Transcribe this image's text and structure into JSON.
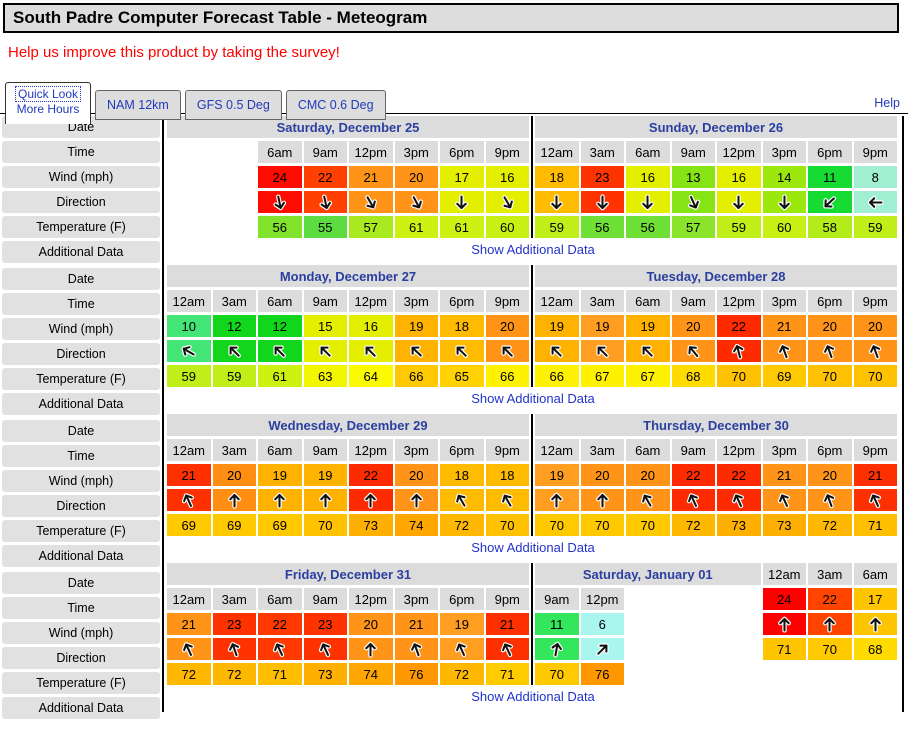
{
  "window_title": "South Padre Computer Forecast Table - Meteogram",
  "survey_text": "Help us improve this product by taking the survey!",
  "help_label": "Help",
  "tabs": {
    "active": {
      "line1": "Quick Look",
      "line2": "More Hours"
    },
    "others": [
      "NAM 12km",
      "GFS 0.5 Deg",
      "CMC 0.6 Deg"
    ]
  },
  "sidebar": {
    "row_labels": [
      "Date",
      "Time",
      "Wind (mph)",
      "Direction",
      "Temperature (F)",
      "Additional Data"
    ]
  },
  "show_additional_label": "Show Additional Data",
  "colors": {
    "header_bg": "#dcdcdc",
    "label_bg": "#e1e1e1",
    "date_text": "#2b3fa0",
    "link_blue": "#2233cc",
    "survey_red": "#ff0000"
  },
  "sections": [
    {
      "days": [
        {
          "title": "Saturday, December 25",
          "lead_blanks": 2,
          "header_cols": 8,
          "cols": [
            {
              "time": "6am",
              "wind": "24",
              "wind_color": "#ff0b00",
              "dir_deg": 168,
              "temp": "56",
              "temp_color": "#82e32c"
            },
            {
              "time": "9am",
              "wind": "22",
              "wind_color": "#ff4000",
              "dir_deg": 168,
              "temp": "55",
              "temp_color": "#5cdc3f"
            },
            {
              "time": "12pm",
              "wind": "21",
              "wind_color": "#ff9418",
              "dir_deg": 150,
              "temp": "57",
              "temp_color": "#a8ea1f"
            },
            {
              "time": "3pm",
              "wind": "20",
              "wind_color": "#ff9418",
              "dir_deg": 152,
              "temp": "61",
              "temp_color": "#cdf112"
            },
            {
              "time": "6pm",
              "wind": "17",
              "wind_color": "#e4ef00",
              "dir_deg": 180,
              "temp": "61",
              "temp_color": "#cdf112"
            },
            {
              "time": "9pm",
              "wind": "16",
              "wind_color": "#e4ef00",
              "dir_deg": 150,
              "temp": "60",
              "temp_color": "#c9f015"
            }
          ]
        },
        {
          "title": "Sunday, December 26",
          "lead_blanks": 0,
          "header_cols": 8,
          "cols": [
            {
              "time": "12am",
              "wind": "18",
              "wind_color": "#ffbb00",
              "dir_deg": 180,
              "temp": "59",
              "temp_color": "#bfee19"
            },
            {
              "time": "3am",
              "wind": "23",
              "wind_color": "#ff3300",
              "dir_deg": 180,
              "temp": "56",
              "temp_color": "#6fe036"
            },
            {
              "time": "6am",
              "wind": "16",
              "wind_color": "#e4ef00",
              "dir_deg": 180,
              "temp": "56",
              "temp_color": "#6fe036"
            },
            {
              "time": "9am",
              "wind": "13",
              "wind_color": "#86e414",
              "dir_deg": 155,
              "temp": "57",
              "temp_color": "#89e42b"
            },
            {
              "time": "12pm",
              "wind": "16",
              "wind_color": "#e4ef00",
              "dir_deg": 180,
              "temp": "59",
              "temp_color": "#bfee19"
            },
            {
              "time": "3pm",
              "wind": "14",
              "wind_color": "#9ce80d",
              "dir_deg": 180,
              "temp": "60",
              "temp_color": "#c9f015"
            },
            {
              "time": "6pm",
              "wind": "11",
              "wind_color": "#16db33",
              "dir_deg": 227,
              "temp": "58",
              "temp_color": "#b4ec1b"
            },
            {
              "time": "9pm",
              "wind": "8",
              "wind_color": "#a0efd2",
              "dir_deg": 270,
              "temp": "59",
              "temp_color": "#bfee19"
            }
          ]
        }
      ]
    },
    {
      "days": [
        {
          "title": "Monday, December 27",
          "lead_blanks": 0,
          "header_cols": 8,
          "cols": [
            {
              "time": "12am",
              "wind": "10",
              "wind_color": "#44e577",
              "dir_deg": 300,
              "temp": "59",
              "temp_color": "#bfee19"
            },
            {
              "time": "3am",
              "wind": "12",
              "wind_color": "#12d61b",
              "dir_deg": 315,
              "temp": "59",
              "temp_color": "#bfee19"
            },
            {
              "time": "6am",
              "wind": "12",
              "wind_color": "#12d61b",
              "dir_deg": 315,
              "temp": "61",
              "temp_color": "#cdf112"
            },
            {
              "time": "9am",
              "wind": "15",
              "wind_color": "#e4ef00",
              "dir_deg": 315,
              "temp": "63",
              "temp_color": "#f2f700"
            },
            {
              "time": "12pm",
              "wind": "16",
              "wind_color": "#e4ef00",
              "dir_deg": 315,
              "temp": "64",
              "temp_color": "#fbfa00"
            },
            {
              "time": "3pm",
              "wind": "19",
              "wind_color": "#ffb300",
              "dir_deg": 313,
              "temp": "66",
              "temp_color": "#ffc800"
            },
            {
              "time": "6pm",
              "wind": "18",
              "wind_color": "#ffbb00",
              "dir_deg": 315,
              "temp": "65",
              "temp_color": "#ffd200"
            },
            {
              "time": "9pm",
              "wind": "20",
              "wind_color": "#ff9418",
              "dir_deg": 315,
              "temp": "66",
              "temp_color": "#fff200"
            }
          ]
        },
        {
          "title": "Tuesday, December 28",
          "lead_blanks": 0,
          "header_cols": 8,
          "cols": [
            {
              "time": "12am",
              "wind": "19",
              "wind_color": "#ffb300",
              "dir_deg": 315,
              "temp": "66",
              "temp_color": "#fff200"
            },
            {
              "time": "3am",
              "wind": "19",
              "wind_color": "#ff9e20",
              "dir_deg": 315,
              "temp": "67",
              "temp_color": "#fff200"
            },
            {
              "time": "6am",
              "wind": "19",
              "wind_color": "#ffb300",
              "dir_deg": 315,
              "temp": "67",
              "temp_color": "#fff200"
            },
            {
              "time": "9am",
              "wind": "20",
              "wind_color": "#ff9418",
              "dir_deg": 320,
              "temp": "68",
              "temp_color": "#ffdb00"
            },
            {
              "time": "12pm",
              "wind": "22",
              "wind_color": "#ff2b00",
              "dir_deg": 345,
              "temp": "70",
              "temp_color": "#ffc200"
            },
            {
              "time": "3pm",
              "wind": "21",
              "wind_color": "#ff9418",
              "dir_deg": 340,
              "temp": "69",
              "temp_color": "#ffc900"
            },
            {
              "time": "6pm",
              "wind": "20",
              "wind_color": "#ff9418",
              "dir_deg": 340,
              "temp": "70",
              "temp_color": "#ffc200"
            },
            {
              "time": "9pm",
              "wind": "20",
              "wind_color": "#ff9418",
              "dir_deg": 340,
              "temp": "70",
              "temp_color": "#ffc200"
            }
          ]
        }
      ]
    },
    {
      "days": [
        {
          "title": "Wednesday, December 29",
          "lead_blanks": 0,
          "header_cols": 8,
          "cols": [
            {
              "time": "12am",
              "wind": "21",
              "wind_color": "#ff3000",
              "dir_deg": 335,
              "temp": "69",
              "temp_color": "#ffc900"
            },
            {
              "time": "3am",
              "wind": "20",
              "wind_color": "#ff8e12",
              "dir_deg": 0,
              "temp": "69",
              "temp_color": "#ffc900"
            },
            {
              "time": "6am",
              "wind": "19",
              "wind_color": "#ffb300",
              "dir_deg": 0,
              "temp": "69",
              "temp_color": "#ffc900"
            },
            {
              "time": "9am",
              "wind": "19",
              "wind_color": "#ffb300",
              "dir_deg": 0,
              "temp": "70",
              "temp_color": "#ffc200"
            },
            {
              "time": "12pm",
              "wind": "22",
              "wind_color": "#ff2b00",
              "dir_deg": 0,
              "temp": "73",
              "temp_color": "#ffaf00"
            },
            {
              "time": "3pm",
              "wind": "20",
              "wind_color": "#ff9418",
              "dir_deg": 0,
              "temp": "74",
              "temp_color": "#ffa700"
            },
            {
              "time": "6pm",
              "wind": "18",
              "wind_color": "#ffbb00",
              "dir_deg": 330,
              "temp": "72",
              "temp_color": "#ffb800"
            },
            {
              "time": "9pm",
              "wind": "18",
              "wind_color": "#ffbb00",
              "dir_deg": 330,
              "temp": "70",
              "temp_color": "#ffc200"
            }
          ]
        },
        {
          "title": "Thursday, December 30",
          "lead_blanks": 0,
          "header_cols": 8,
          "cols": [
            {
              "time": "12am",
              "wind": "19",
              "wind_color": "#ff9e20",
              "dir_deg": 0,
              "temp": "70",
              "temp_color": "#ffc900"
            },
            {
              "time": "3am",
              "wind": "20",
              "wind_color": "#ff9418",
              "dir_deg": 0,
              "temp": "70",
              "temp_color": "#ffc900"
            },
            {
              "time": "6am",
              "wind": "20",
              "wind_color": "#ff9418",
              "dir_deg": 330,
              "temp": "70",
              "temp_color": "#ffc900"
            },
            {
              "time": "9am",
              "wind": "22",
              "wind_color": "#ff2b00",
              "dir_deg": 335,
              "temp": "72",
              "temp_color": "#ffb800"
            },
            {
              "time": "12pm",
              "wind": "22",
              "wind_color": "#ff2b00",
              "dir_deg": 335,
              "temp": "73",
              "temp_color": "#ffaf00"
            },
            {
              "time": "3pm",
              "wind": "21",
              "wind_color": "#ff9418",
              "dir_deg": 335,
              "temp": "73",
              "temp_color": "#ffaf00"
            },
            {
              "time": "6pm",
              "wind": "20",
              "wind_color": "#ff9418",
              "dir_deg": 340,
              "temp": "72",
              "temp_color": "#ffb800"
            },
            {
              "time": "9pm",
              "wind": "21",
              "wind_color": "#ff3000",
              "dir_deg": 335,
              "temp": "71",
              "temp_color": "#ffbe00"
            }
          ]
        }
      ]
    },
    {
      "days": [
        {
          "title": "Friday, December 31",
          "lead_blanks": 0,
          "header_cols": 8,
          "cols": [
            {
              "time": "12am",
              "wind": "21",
              "wind_color": "#ff9418",
              "dir_deg": 335,
              "temp": "72",
              "temp_color": "#ffb800"
            },
            {
              "time": "3am",
              "wind": "23",
              "wind_color": "#ff3300",
              "dir_deg": 340,
              "temp": "72",
              "temp_color": "#ffb800"
            },
            {
              "time": "6am",
              "wind": "22",
              "wind_color": "#ff3a00",
              "dir_deg": 335,
              "temp": "71",
              "temp_color": "#ffbe00"
            },
            {
              "time": "9am",
              "wind": "23",
              "wind_color": "#ff3300",
              "dir_deg": 335,
              "temp": "73",
              "temp_color": "#ffaf00"
            },
            {
              "time": "12pm",
              "wind": "20",
              "wind_color": "#ff9418",
              "dir_deg": 0,
              "temp": "74",
              "temp_color": "#ffa700"
            },
            {
              "time": "3pm",
              "wind": "21",
              "wind_color": "#ff9418",
              "dir_deg": 340,
              "temp": "76",
              "temp_color": "#ff9800"
            },
            {
              "time": "6pm",
              "wind": "19",
              "wind_color": "#ff9e20",
              "dir_deg": 335,
              "temp": "72",
              "temp_color": "#ffb800"
            },
            {
              "time": "9pm",
              "wind": "21",
              "wind_color": "#ff3000",
              "dir_deg": 335,
              "temp": "71",
              "temp_color": "#ffcc00"
            }
          ]
        },
        {
          "title": "Saturday, January 01",
          "lead_blanks": 0,
          "header_cols": 5,
          "cols": [
            {
              "time": "12am",
              "wind": "24",
              "wind_color": "#ff0000",
              "dir_deg": 0,
              "temp": "71",
              "temp_color": "#ffc400"
            },
            {
              "time": "3am",
              "wind": "22",
              "wind_color": "#ff4400",
              "dir_deg": 0,
              "temp": "70",
              "temp_color": "#ffc900"
            },
            {
              "time": "6am",
              "wind": "17",
              "wind_color": "#ffc400",
              "dir_deg": 0,
              "temp": "68",
              "temp_color": "#ffdb00"
            },
            {
              "time": "9am",
              "wind": "11",
              "wind_color": "#33e65c",
              "dir_deg": 10,
              "temp": "70",
              "temp_color": "#ffc900"
            },
            {
              "time": "12pm",
              "wind": "6",
              "wind_color": "#a8f6ee",
              "dir_deg": 45,
              "temp": "76",
              "temp_color": "#ff9800"
            }
          ]
        }
      ]
    }
  ]
}
